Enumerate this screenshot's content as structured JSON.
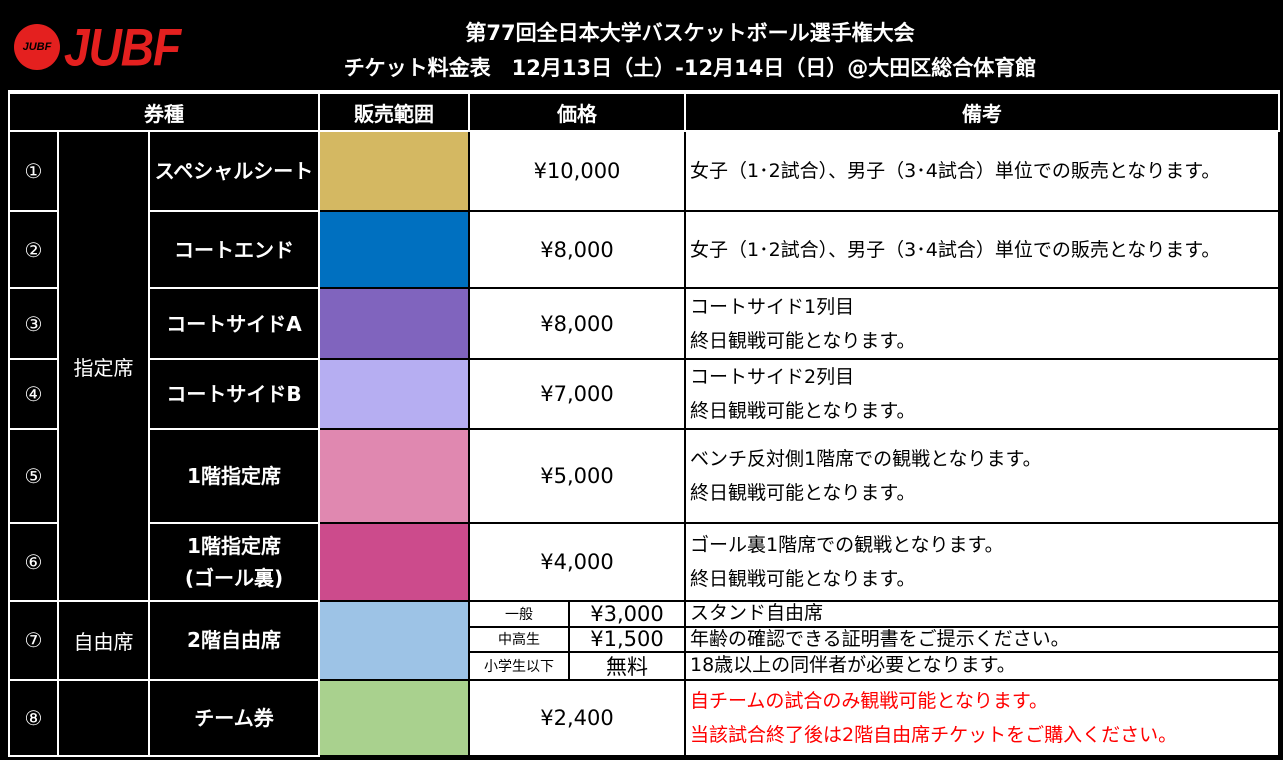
{
  "logo": {
    "text": "JUBF",
    "ball_text": "JUBF"
  },
  "title": {
    "line1": "第77回全日本大学バスケットボール選手権大会",
    "line2": "チケット料金表　12月13日（土）-12月14日（日）@大田区総合体育館"
  },
  "headers": {
    "type": "券種",
    "area": "販売範囲",
    "price": "価格",
    "notes": "備考"
  },
  "categories": {
    "reserved": "指定席",
    "free": "自由席"
  },
  "rows": [
    {
      "num": "①",
      "name": "スペシャルシート",
      "color": "#d4b862",
      "price": "¥10,000",
      "notes": [
        "女子（1･2試合）、男子（3･4試合）単位での販売となります。"
      ]
    },
    {
      "num": "②",
      "name": "コートエンド",
      "color": "#0070c0",
      "price": "¥8,000",
      "notes": [
        "女子（1･2試合）、男子（3･4試合）単位での販売となります。"
      ]
    },
    {
      "num": "③",
      "name": "コートサイドA",
      "color": "#8064be",
      "price": "¥8,000",
      "notes": [
        "コートサイド1列目",
        "終日観戦可能となります。"
      ]
    },
    {
      "num": "④",
      "name": "コートサイドB",
      "color": "#b6aef2",
      "price": "¥7,000",
      "notes": [
        "コートサイド2列目",
        "終日観戦可能となります。"
      ]
    },
    {
      "num": "⑤",
      "name": "1階指定席",
      "color": "#e088b0",
      "price": "¥5,000",
      "notes": [
        "ベンチ反対側1階席での観戦となります。",
        "終日観戦可能となります。"
      ]
    },
    {
      "num": "⑥",
      "name": "1階指定席\n(ゴール裏)",
      "color": "#cc4b8c",
      "price": "¥4,000",
      "notes": [
        "ゴール裏1階席での観戦となります。",
        "終日観戦可能となります。"
      ]
    },
    {
      "num": "⑦",
      "name": "2階自由席",
      "color": "#9dc3e6",
      "prices": [
        {
          "label": "一般",
          "price": "¥3,000"
        },
        {
          "label": "中高生",
          "price": "¥1,500"
        },
        {
          "label": "小学生以下",
          "price": "無料"
        }
      ],
      "notes": [
        "スタンド自由席",
        "年齢の確認できる証明書をご提示ください。",
        "18歳以上の同伴者が必要となります。"
      ]
    },
    {
      "num": "⑧",
      "name": "チーム券",
      "color": "#a9d18e",
      "price": "¥2,400",
      "notes": [
        "自チームの試合のみ観戦可能となります。",
        "当該試合終了後は2階自由席チケットをご購入ください。"
      ],
      "notes_color": "#ff0000"
    }
  ]
}
